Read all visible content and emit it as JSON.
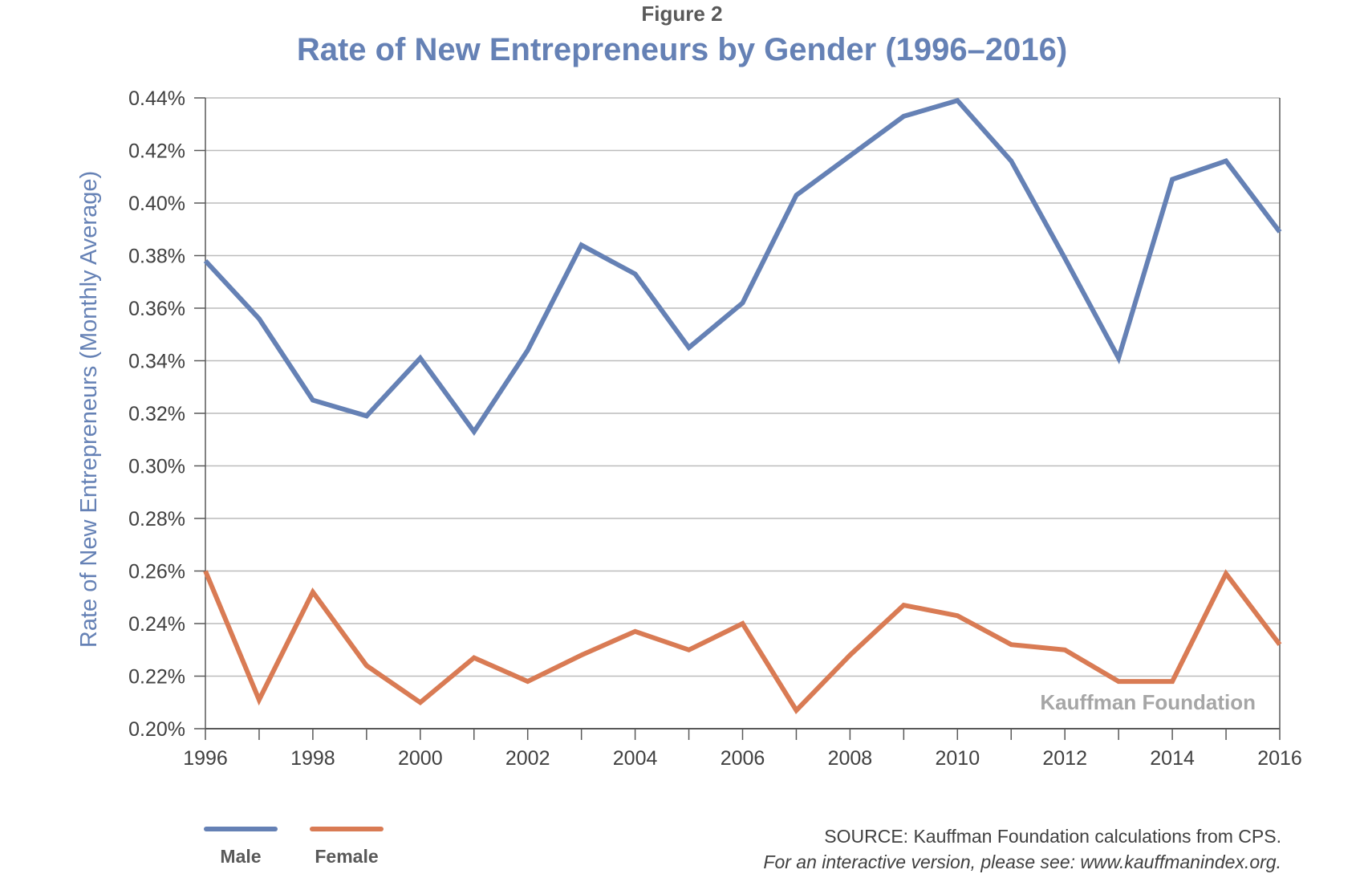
{
  "figure_label": "Figure 2",
  "title": "Rate of New Entrepreneurs by Gender (1996–2016)",
  "watermark": "Kauffman Foundation",
  "source_line": "SOURCE: Kauffman Foundation calculations from CPS.",
  "interactive_line": "For an interactive version, please see: www.kauffmanindex.org.",
  "colors": {
    "male": "#6581b5",
    "female": "#d97b54",
    "title": "#6581b5",
    "ylabel": "#6581b5",
    "grid": "#bcbcbc"
  },
  "chart_data": {
    "type": "line",
    "title": "Rate of New Entrepreneurs by Gender (1996–2016)",
    "xlabel": "",
    "ylabel": "Rate of New Entrepreneurs (Monthly Average)",
    "x": [
      1996,
      1997,
      1998,
      1999,
      2000,
      2001,
      2002,
      2003,
      2004,
      2005,
      2006,
      2007,
      2008,
      2009,
      2010,
      2011,
      2012,
      2013,
      2014,
      2015,
      2016
    ],
    "xticks": [
      "1996",
      "1998",
      "2000",
      "2002",
      "2004",
      "2006",
      "2008",
      "2010",
      "2012",
      "2014",
      "2016"
    ],
    "yticks": [
      "0.20%",
      "0.22%",
      "0.24%",
      "0.26%",
      "0.28%",
      "0.30%",
      "0.32%",
      "0.34%",
      "0.36%",
      "0.38%",
      "0.40%",
      "0.42%",
      "0.44%"
    ],
    "ylim": [
      0.2,
      0.44
    ],
    "grid": true,
    "legend_position": "bottom-left",
    "series": [
      {
        "name": "Male",
        "values": [
          0.378,
          0.356,
          0.325,
          0.319,
          0.341,
          0.313,
          0.344,
          0.384,
          0.373,
          0.345,
          0.362,
          0.403,
          0.418,
          0.433,
          0.439,
          0.416,
          0.379,
          0.341,
          0.409,
          0.416,
          0.389
        ]
      },
      {
        "name": "Female",
        "values": [
          0.26,
          0.211,
          0.252,
          0.224,
          0.21,
          0.227,
          0.218,
          0.228,
          0.237,
          0.23,
          0.24,
          0.207,
          0.228,
          0.247,
          0.243,
          0.232,
          0.23,
          0.218,
          0.218,
          0.259,
          0.232
        ]
      }
    ]
  }
}
